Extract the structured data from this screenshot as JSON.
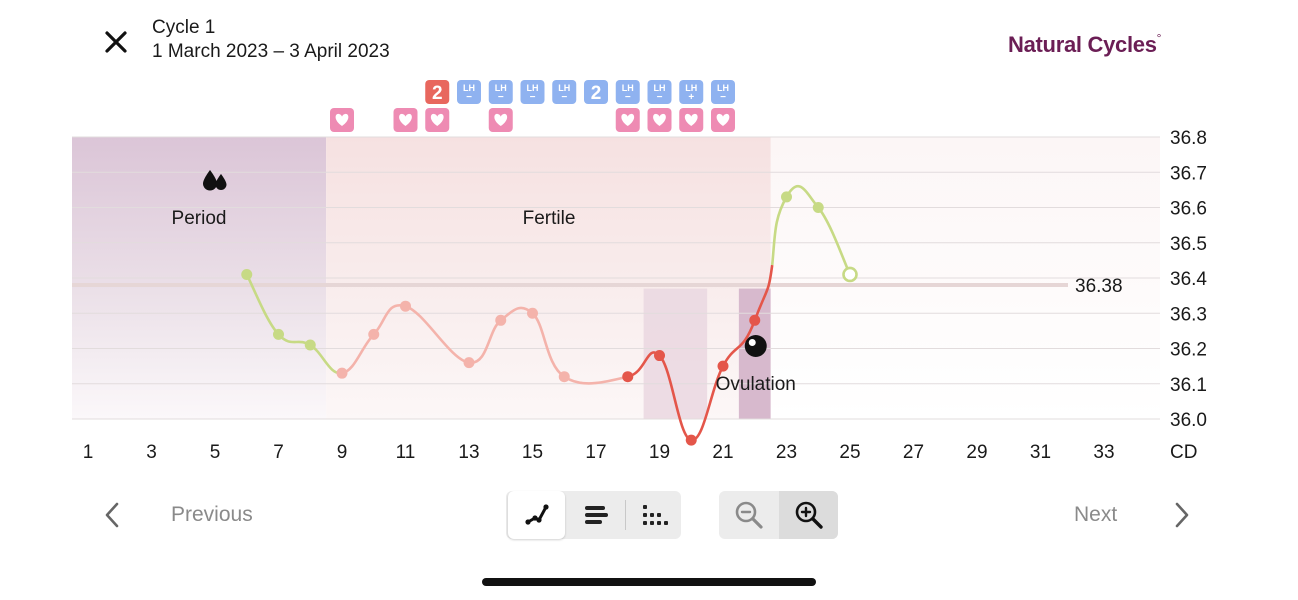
{
  "header": {
    "close_icon": "close-x-icon",
    "cycle_title": "Cycle 1",
    "cycle_dates": "1 March 2023 – 3 April 2023",
    "brand_name": "Natural Cycles",
    "brand_mark": "°"
  },
  "chart_data": {
    "type": "line",
    "xlabel": "CD",
    "x_ticks": [
      1,
      3,
      5,
      7,
      9,
      11,
      13,
      15,
      17,
      19,
      21,
      23,
      25,
      27,
      29,
      31,
      33
    ],
    "y_ticks": [
      "36.8",
      "36.7",
      "36.6",
      "36.5",
      "36.4",
      "36.3",
      "36.2",
      "36.1",
      "36.0"
    ],
    "ylim": [
      36.0,
      36.8
    ],
    "xlim": [
      1,
      33
    ],
    "cover_line": {
      "value": 36.38,
      "label": "36.38"
    },
    "phases": [
      {
        "name": "Period",
        "label": "Period",
        "from": 1,
        "to": 8.5,
        "icon": "blood-drops-icon"
      },
      {
        "name": "Fertile",
        "label": "Fertile",
        "from": 8.5,
        "to": 22.5
      }
    ],
    "ovulation": {
      "label": "Ovulation",
      "day": 22,
      "icon": "ovulation-egg-icon"
    },
    "ovulation_window_days": [
      19,
      20,
      21.5,
      22
    ],
    "temperatures": [
      {
        "day": 6,
        "temp": 36.41,
        "color": "#c7da85"
      },
      {
        "day": 7,
        "temp": 36.24,
        "color": "#c7da85"
      },
      {
        "day": 8,
        "temp": 36.21,
        "color": "#c7da85"
      },
      {
        "day": 9,
        "temp": 36.13,
        "color": "#f4b3ab"
      },
      {
        "day": 10,
        "temp": 36.24,
        "color": "#f4b3ab"
      },
      {
        "day": 11,
        "temp": 36.32,
        "color": "#f4b3ab"
      },
      {
        "day": 13,
        "temp": 36.16,
        "color": "#f4b3ab"
      },
      {
        "day": 14,
        "temp": 36.28,
        "color": "#f4b3ab"
      },
      {
        "day": 15,
        "temp": 36.3,
        "color": "#f4b3ab"
      },
      {
        "day": 16,
        "temp": 36.12,
        "color": "#f4b3ab"
      },
      {
        "day": 18,
        "temp": 36.12,
        "color": "#e4564a"
      },
      {
        "day": 19,
        "temp": 36.18,
        "color": "#e4564a"
      },
      {
        "day": 20,
        "temp": 35.94,
        "color": "#e4564a"
      },
      {
        "day": 21,
        "temp": 36.15,
        "color": "#e4564a"
      },
      {
        "day": 22,
        "temp": 36.28,
        "color": "#e4564a"
      },
      {
        "day": 23,
        "temp": 36.63,
        "color": "#c7da85"
      },
      {
        "day": 24,
        "temp": 36.6,
        "color": "#c7da85"
      },
      {
        "day": 25,
        "temp": 36.41,
        "color": "#c7da85",
        "hollow": true
      }
    ],
    "markers": [
      {
        "day": 9,
        "row": 2,
        "kind": "heart"
      },
      {
        "day": 11,
        "row": 2,
        "kind": "heart"
      },
      {
        "day": 12,
        "row": 1,
        "kind": "badge-red",
        "text": "2"
      },
      {
        "day": 12,
        "row": 2,
        "kind": "heart"
      },
      {
        "day": 13,
        "row": 1,
        "kind": "lh",
        "text": "LH",
        "sign": "−"
      },
      {
        "day": 14,
        "row": 1,
        "kind": "lh",
        "text": "LH",
        "sign": "−"
      },
      {
        "day": 14,
        "row": 2,
        "kind": "heart"
      },
      {
        "day": 15,
        "row": 1,
        "kind": "lh",
        "text": "LH",
        "sign": "−"
      },
      {
        "day": 16,
        "row": 1,
        "kind": "lh",
        "text": "LH",
        "sign": "−"
      },
      {
        "day": 17,
        "row": 1,
        "kind": "badge-blue",
        "text": "2"
      },
      {
        "day": 18,
        "row": 1,
        "kind": "lh",
        "text": "LH",
        "sign": "−"
      },
      {
        "day": 18,
        "row": 2,
        "kind": "heart"
      },
      {
        "day": 19,
        "row": 1,
        "kind": "lh",
        "text": "LH",
        "sign": "−"
      },
      {
        "day": 19,
        "row": 2,
        "kind": "heart"
      },
      {
        "day": 20,
        "row": 1,
        "kind": "lh",
        "text": "LH",
        "sign": "+"
      },
      {
        "day": 20,
        "row": 2,
        "kind": "heart"
      },
      {
        "day": 21,
        "row": 1,
        "kind": "lh",
        "text": "LH",
        "sign": "−"
      },
      {
        "day": 21,
        "row": 2,
        "kind": "heart"
      }
    ]
  },
  "controls": {
    "previous_label": "Previous",
    "next_label": "Next",
    "previous_icon": "chevron-left-icon",
    "next_icon": "chevron-right-icon",
    "views": [
      {
        "name": "line-view",
        "icon": "line-graph-icon",
        "selected": true
      },
      {
        "name": "bar-view",
        "icon": "bar-list-icon",
        "selected": false
      },
      {
        "name": "dot-view",
        "icon": "dot-grid-icon",
        "selected": false
      }
    ],
    "zoom_out_icon": "zoom-out-icon",
    "zoom_in_icon": "zoom-in-icon"
  }
}
